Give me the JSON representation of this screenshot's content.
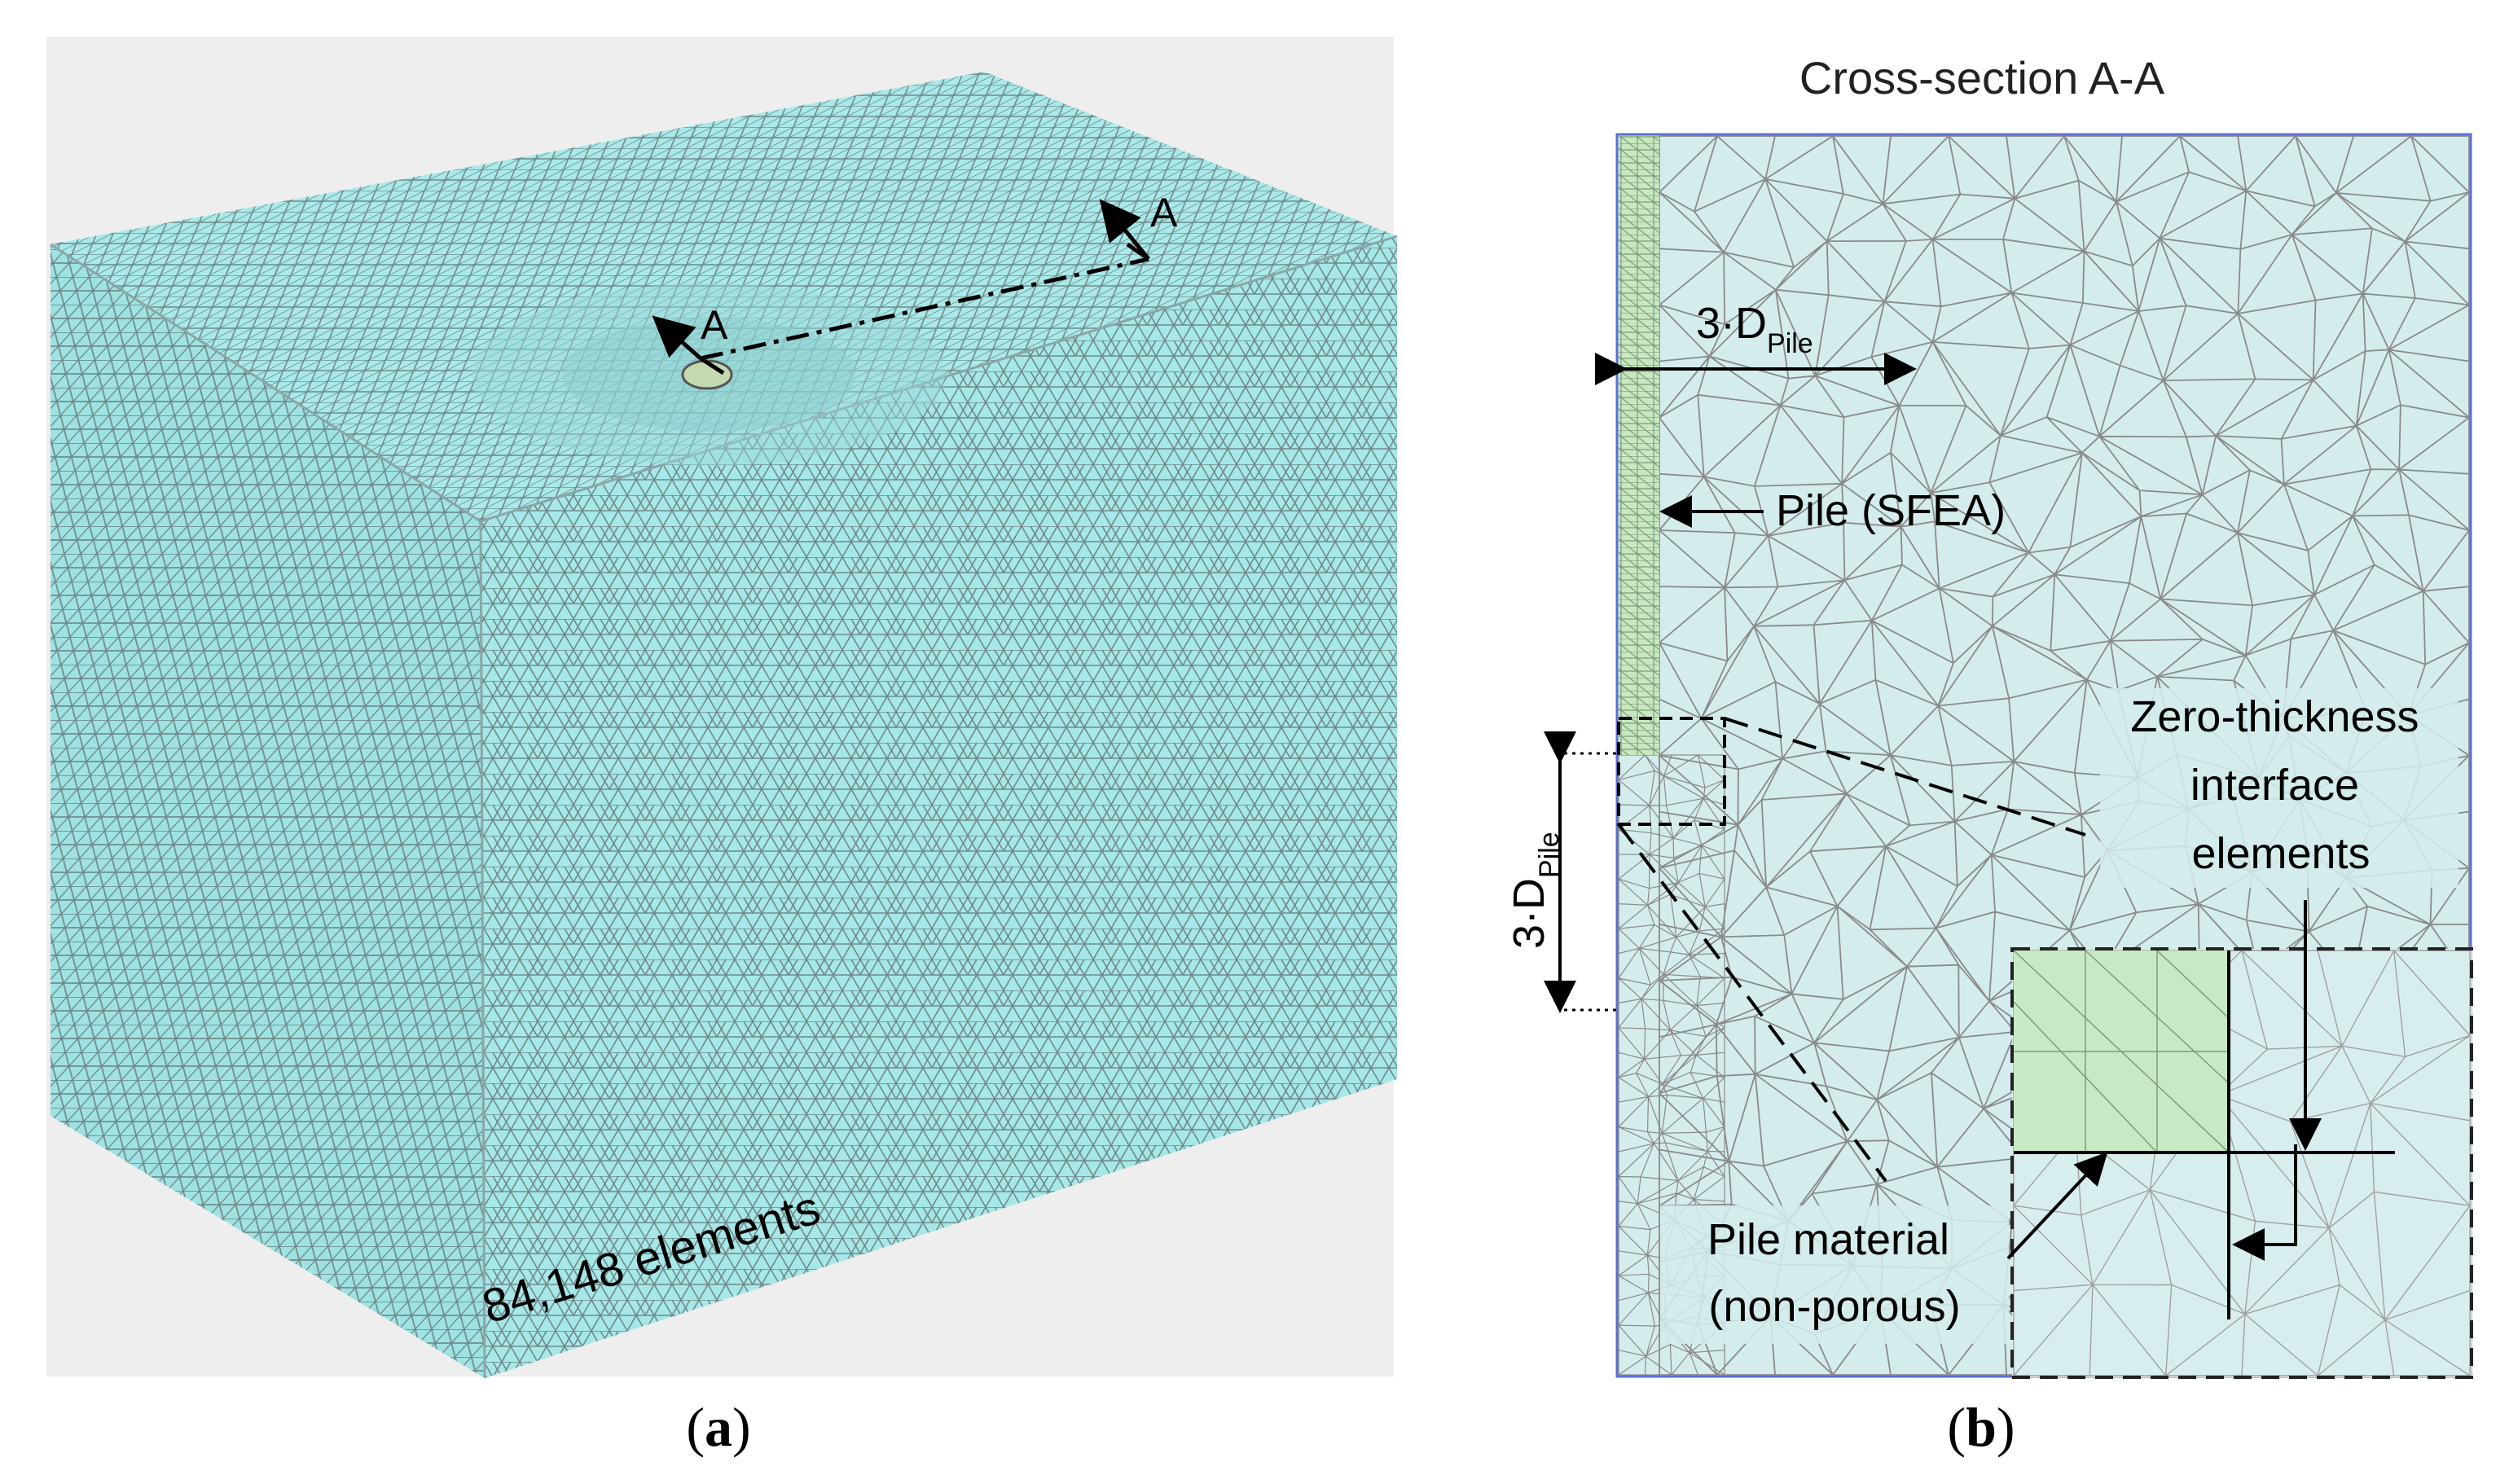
{
  "panel_a": {
    "caption_letter": "a",
    "section_mark": "A",
    "element_count": "84,148 elements",
    "colors": {
      "mesh_fill": "#a6e6e6",
      "mesh_line": "#6f8a8c",
      "background": "#eeeeee",
      "pile": "#c4d9b0"
    }
  },
  "panel_b": {
    "caption_letter": "b",
    "title": "Cross-section A-A",
    "dim_horizontal": {
      "base": "3·D",
      "sub": "Pile"
    },
    "dim_vertical": {
      "base": "3·D",
      "sub": "Pile"
    },
    "pile_label": "Pile (SFEA)",
    "interface_label": [
      "Zero-thickness",
      "interface",
      "elements"
    ],
    "material_label": [
      "Pile material",
      "(non-porous)"
    ],
    "colors": {
      "soil_fill": "#d4ecec",
      "pile_fill": "#c8e8c0",
      "mesh_line": "#8a8a8a",
      "border": "#5b6fd0"
    }
  }
}
